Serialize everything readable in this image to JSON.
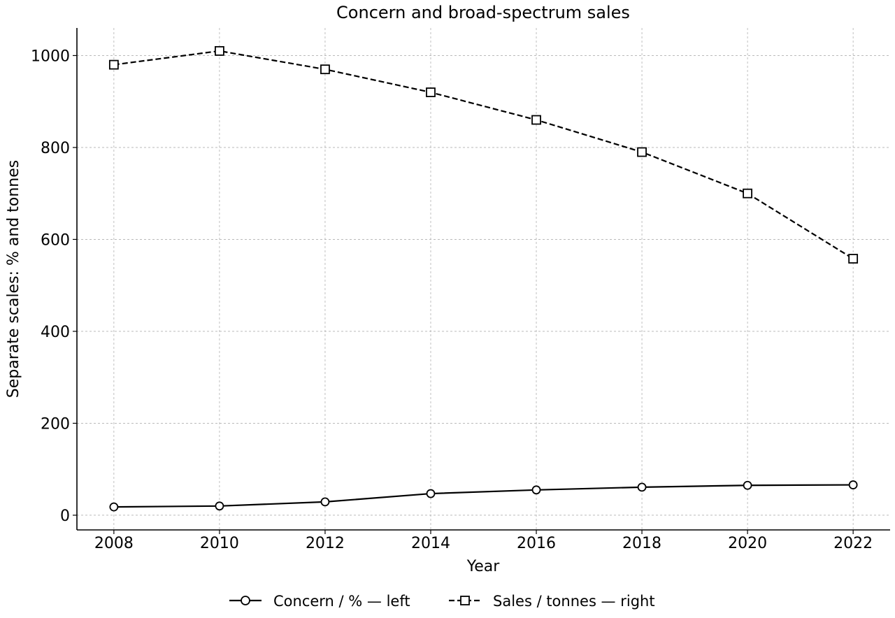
{
  "chart_data": {
    "type": "line",
    "title": "Concern and broad-spectrum sales",
    "xlabel": "Year",
    "ylabel": "Separate scales: % and tonnes",
    "x": [
      2008,
      2010,
      2012,
      2014,
      2016,
      2018,
      2020,
      2022
    ],
    "xlim": [
      2007.3,
      2022.7
    ],
    "ylim": [
      -32,
      1060
    ],
    "xticks": [
      2008,
      2010,
      2012,
      2014,
      2016,
      2018,
      2020,
      2022
    ],
    "yticks": [
      0,
      200,
      400,
      600,
      800,
      1000
    ],
    "grid": true,
    "legend_position": "bottom-center",
    "series": [
      {
        "name": "Concern / % — left",
        "values": [
          18,
          20,
          29,
          47,
          55,
          61,
          65,
          66
        ],
        "line_style": "solid",
        "marker": "circle",
        "color": "#000000"
      },
      {
        "name": "Sales / tonnes — right",
        "values": [
          980,
          1010,
          970,
          920,
          860,
          790,
          700,
          558
        ],
        "line_style": "dashed",
        "marker": "square",
        "color": "#000000"
      }
    ]
  }
}
